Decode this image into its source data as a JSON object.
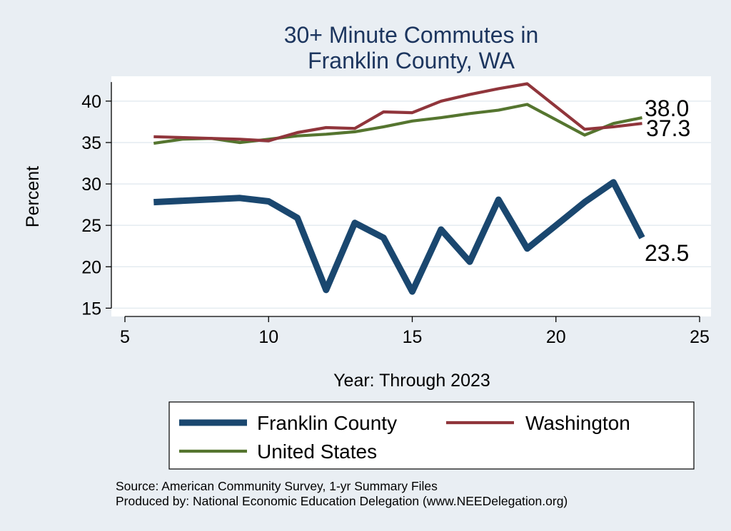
{
  "colors": {
    "background": "#e9eef3",
    "plot_bg": "#ffffff",
    "grid": "#e4ebf0",
    "title": "#1c355e",
    "franklin": "#1a476f",
    "washington": "#90353b",
    "us": "#55752f"
  },
  "chart_data": {
    "type": "line",
    "title_lines": [
      "30+ Minute Commutes in",
      "Franklin County, WA"
    ],
    "xlabel": "Year: Through 2023",
    "ylabel": "Percent",
    "xlim": [
      5,
      25
    ],
    "ylim": [
      14,
      43
    ],
    "xticks": [
      5,
      10,
      15,
      20,
      25
    ],
    "yticks": [
      15,
      20,
      25,
      30,
      35,
      40
    ],
    "grid": true,
    "legend_position": "bottom",
    "series": [
      {
        "name": "Franklin County",
        "color_key": "franklin",
        "weight": "thick",
        "x": [
          6,
          9,
          10,
          11,
          12,
          13,
          14,
          15,
          16,
          17,
          18,
          19,
          20,
          21,
          22,
          23
        ],
        "y": [
          27.8,
          28.3,
          27.9,
          25.9,
          17.2,
          25.3,
          23.5,
          17.0,
          24.5,
          20.6,
          28.1,
          22.2,
          25.0,
          27.8,
          30.2,
          23.5
        ],
        "end_label": "23.5"
      },
      {
        "name": "Washington",
        "color_key": "washington",
        "weight": "thin",
        "x": [
          6,
          9,
          10,
          11,
          12,
          13,
          14,
          15,
          16,
          17,
          18,
          19,
          21,
          22,
          23
        ],
        "y": [
          35.7,
          35.4,
          35.2,
          36.2,
          36.8,
          36.7,
          38.7,
          38.6,
          40.0,
          40.8,
          41.5,
          42.1,
          36.6,
          36.9,
          37.3
        ],
        "end_label": "37.3"
      },
      {
        "name": "United States",
        "color_key": "us",
        "weight": "thin",
        "x": [
          6,
          7,
          8,
          9,
          10,
          11,
          12,
          13,
          14,
          15,
          16,
          17,
          18,
          19,
          21,
          22,
          23
        ],
        "y": [
          34.9,
          35.4,
          35.5,
          35.0,
          35.4,
          35.8,
          36.0,
          36.3,
          36.9,
          37.6,
          38.0,
          38.5,
          38.9,
          39.6,
          35.9,
          37.3,
          38.0
        ],
        "end_label": "38.0"
      }
    ],
    "legend": {
      "entries": [
        "Franklin County",
        "Washington",
        "United States"
      ]
    },
    "notes": [
      "Source: American Community Survey, 1-yr Summary Files",
      "Produced by: National Economic Education Delegation (www.NEEDelegation.org)"
    ]
  }
}
